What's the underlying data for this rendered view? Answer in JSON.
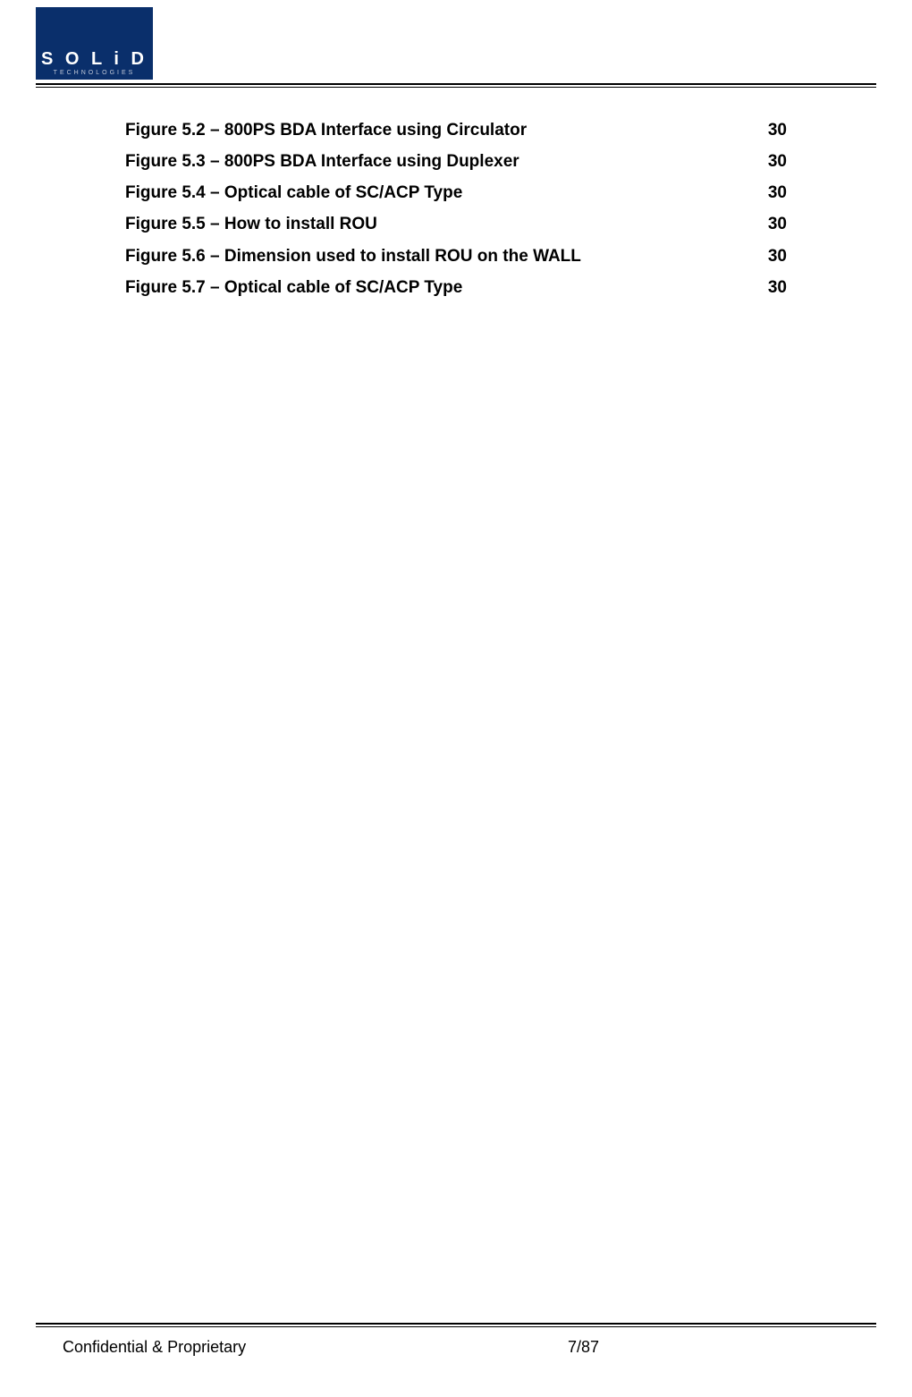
{
  "logo": {
    "line1": "S O L i D",
    "line2": "TECHNOLOGIES"
  },
  "toc": {
    "entries": [
      {
        "label": "Figure 5.2 – 800PS BDA Interface using Circulator ",
        "page": "30"
      },
      {
        "label": "Figure 5.3 – 800PS BDA Interface using Duplexer",
        "page": "30"
      },
      {
        "label": "Figure 5.4 – Optical cable of SC/ACP Type",
        "page": "30"
      },
      {
        "label": "Figure 5.5 – How to install ROU",
        "page": "30"
      },
      {
        "label": "Figure 5.6 – Dimension used to install ROU on the WALL",
        "page": "30"
      },
      {
        "label": "Figure 5.7 – Optical cable of SC/ACP Type",
        "page": "30"
      }
    ]
  },
  "footer": {
    "left": "Confidential & Proprietary",
    "center": "7/87"
  }
}
